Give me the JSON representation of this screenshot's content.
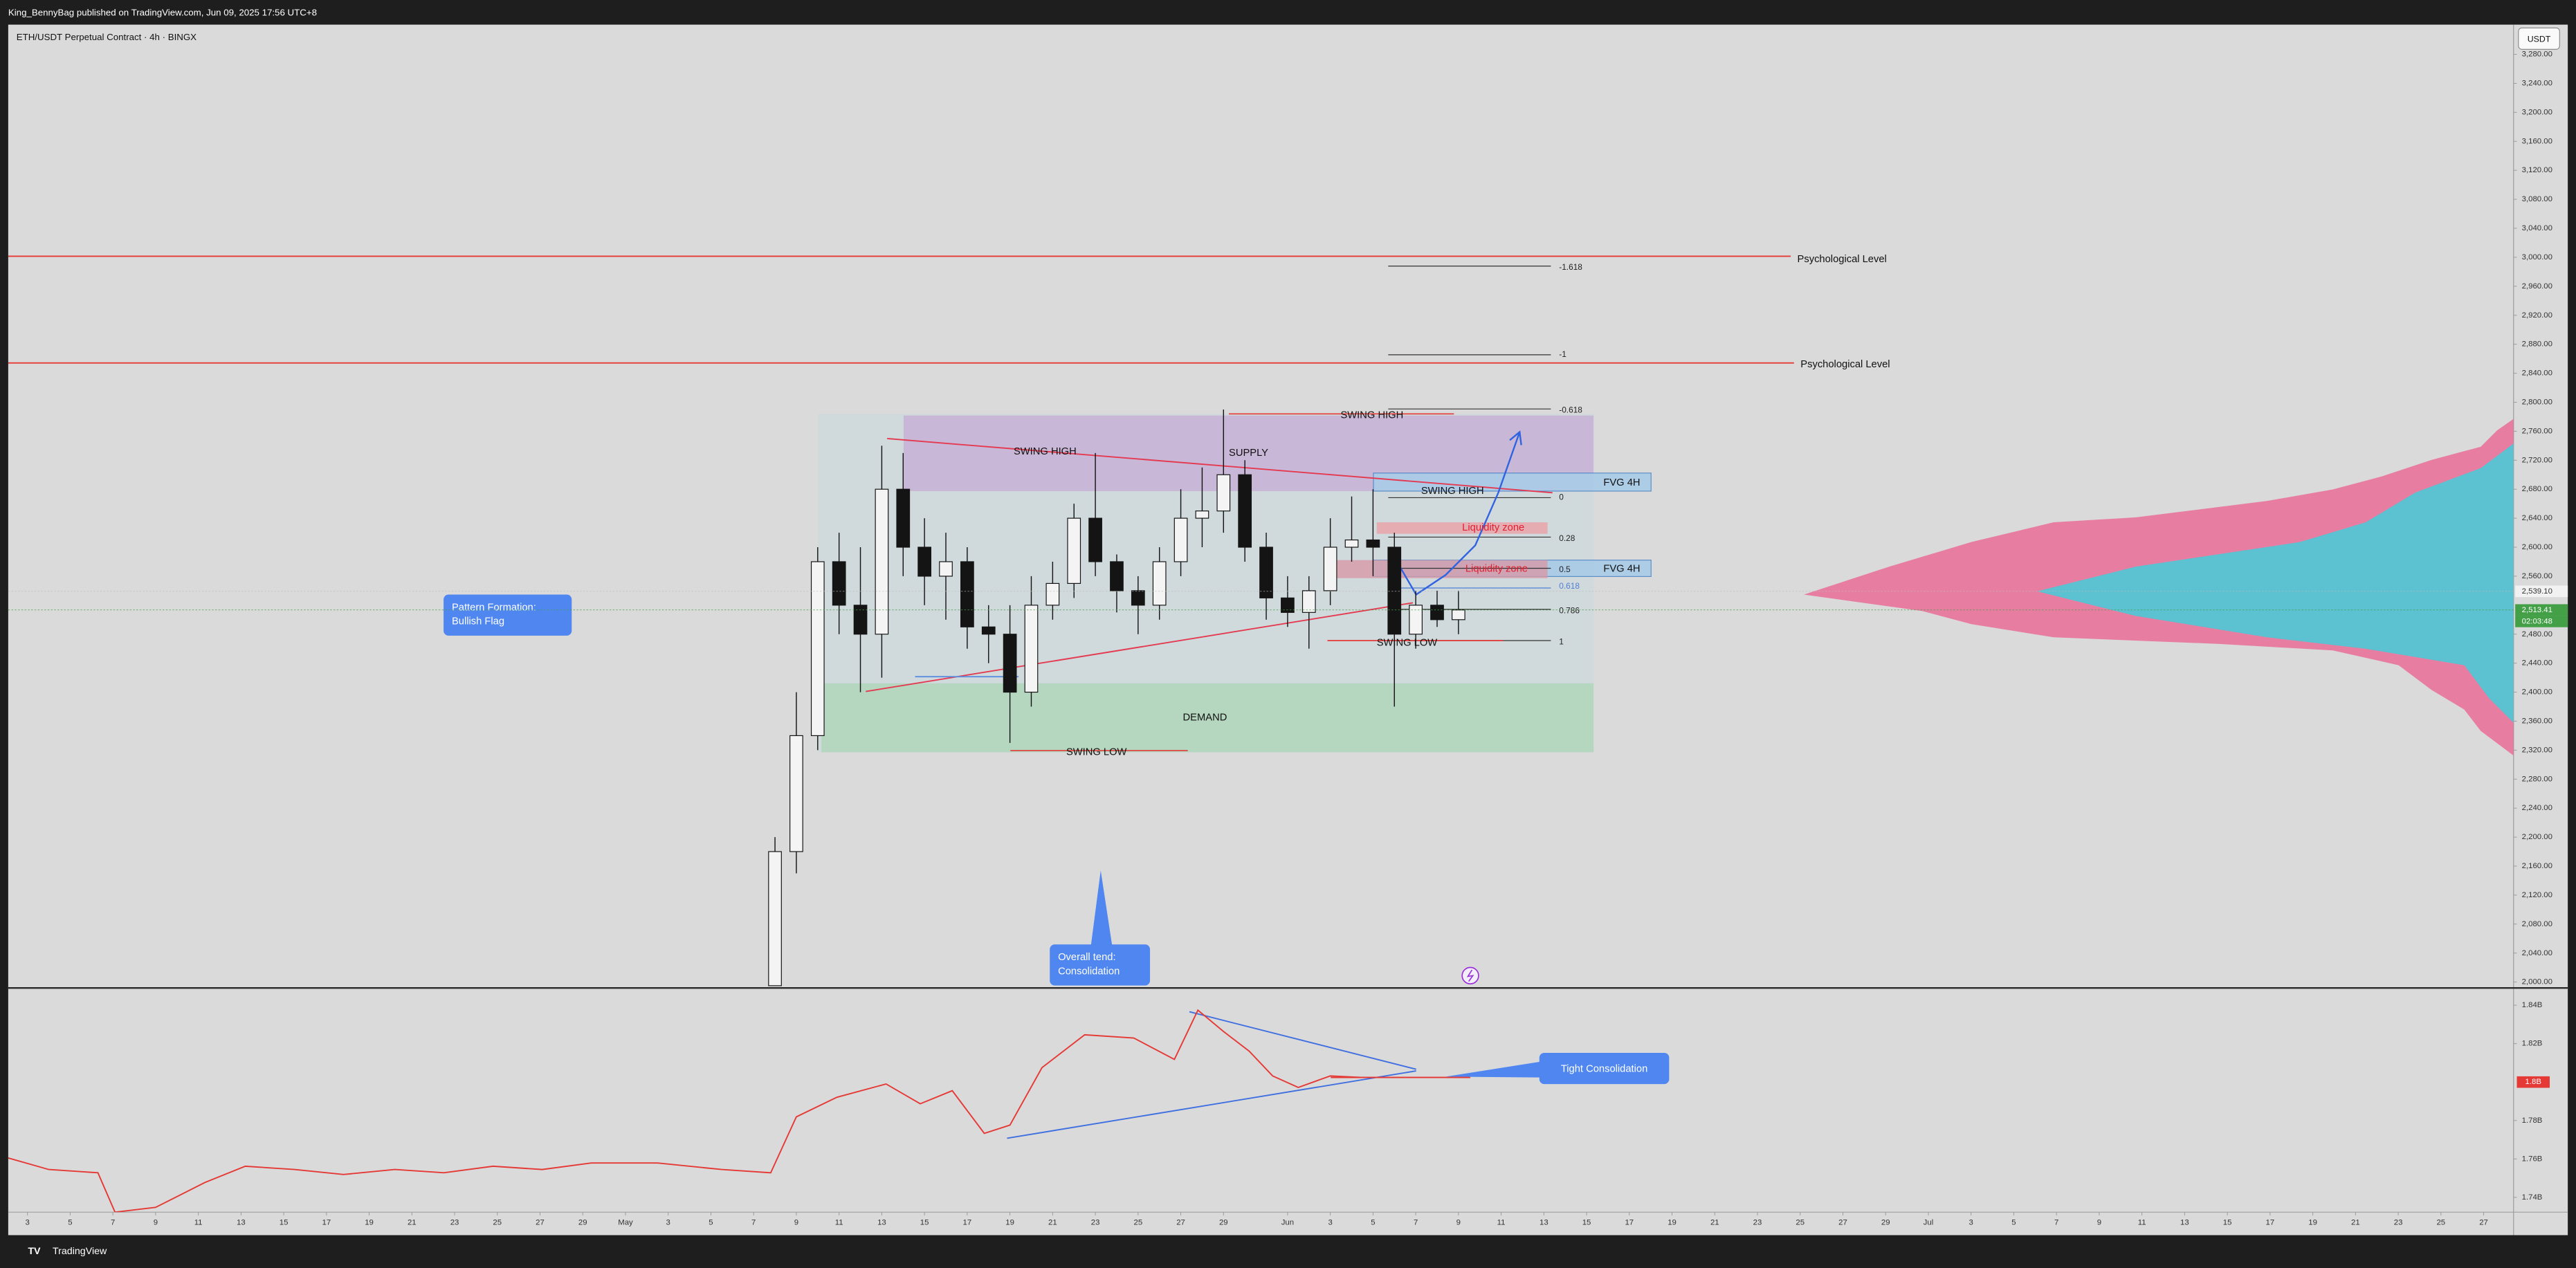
{
  "header": {
    "publisher": "King_BennyBag published on TradingView.com, Jun 09, 2025 17:56 UTC+8"
  },
  "footer": {
    "brand": "TradingView"
  },
  "chart_data": [
    {
      "type": "candlestick",
      "title": "ETH/USDT Perpetual Contract · 4h · BINGX",
      "currency": "USDT",
      "x": [
        37,
        38,
        39,
        40,
        41,
        42,
        43,
        44,
        45,
        46,
        47,
        48,
        49,
        50,
        51,
        52,
        53,
        54,
        55,
        56,
        57,
        58,
        59,
        60,
        61,
        62,
        63,
        64,
        65,
        66,
        67,
        68,
        69
      ],
      "open": [
        1995,
        2180,
        2340,
        2580,
        2520,
        2480,
        2680,
        2600,
        2560,
        2580,
        2490,
        2480,
        2400,
        2520,
        2550,
        2640,
        2580,
        2540,
        2520,
        2580,
        2640,
        2650,
        2700,
        2600,
        2530,
        2510,
        2540,
        2600,
        2610,
        2600,
        2480,
        2520,
        2500
      ],
      "high": [
        2200,
        2400,
        2600,
        2620,
        2600,
        2740,
        2730,
        2640,
        2620,
        2600,
        2520,
        2520,
        2560,
        2580,
        2660,
        2730,
        2590,
        2560,
        2600,
        2680,
        2710,
        2790,
        2720,
        2620,
        2560,
        2560,
        2640,
        2670,
        2680,
        2620,
        2540,
        2540,
        2540
      ],
      "low": [
        1995,
        2150,
        2320,
        2480,
        2400,
        2420,
        2560,
        2520,
        2500,
        2460,
        2440,
        2330,
        2380,
        2500,
        2530,
        2560,
        2510,
        2480,
        2500,
        2560,
        2600,
        2620,
        2580,
        2500,
        2490,
        2460,
        2520,
        2580,
        2560,
        2380,
        2460,
        2490,
        2480
      ],
      "close": [
        2180,
        2340,
        2580,
        2520,
        2480,
        2680,
        2600,
        2560,
        2580,
        2490,
        2480,
        2400,
        2520,
        2550,
        2640,
        2580,
        2540,
        2520,
        2580,
        2640,
        2650,
        2700,
        2600,
        2530,
        2510,
        2540,
        2600,
        2610,
        2600,
        2480,
        2520,
        2500,
        2513.41
      ],
      "colors": {
        "up": "#f4f4f4",
        "down": "#141414",
        "outline": "#141414"
      },
      "xlim": [
        1.1,
        118.4
      ],
      "xticks": [
        {
          "value": 2,
          "label": "3"
        },
        {
          "value": 4,
          "label": "5"
        },
        {
          "value": 6,
          "label": "7"
        },
        {
          "value": 8,
          "label": "9"
        },
        {
          "value": 10,
          "label": "11"
        },
        {
          "value": 12,
          "label": "13"
        },
        {
          "value": 14,
          "label": "15"
        },
        {
          "value": 16,
          "label": "17"
        },
        {
          "value": 18,
          "label": "19"
        },
        {
          "value": 20,
          "label": "21"
        },
        {
          "value": 22,
          "label": "23"
        },
        {
          "value": 24,
          "label": "25"
        },
        {
          "value": 26,
          "label": "27"
        },
        {
          "value": 28,
          "label": "29"
        },
        {
          "value": 30,
          "label": "May"
        },
        {
          "value": 32,
          "label": "3"
        },
        {
          "value": 34,
          "label": "5"
        },
        {
          "value": 36,
          "label": "7"
        },
        {
          "value": 38,
          "label": "9"
        },
        {
          "value": 40,
          "label": "11"
        },
        {
          "value": 42,
          "label": "13"
        },
        {
          "value": 44,
          "label": "15"
        },
        {
          "value": 46,
          "label": "17"
        },
        {
          "value": 48,
          "label": "19"
        },
        {
          "value": 50,
          "label": "21"
        },
        {
          "value": 52,
          "label": "23"
        },
        {
          "value": 54,
          "label": "25"
        },
        {
          "value": 56,
          "label": "27"
        },
        {
          "value": 58,
          "label": "29"
        },
        {
          "value": 61,
          "label": "Jun"
        },
        {
          "value": 63,
          "label": "3"
        },
        {
          "value": 65,
          "label": "5"
        },
        {
          "value": 67,
          "label": "7"
        },
        {
          "value": 69,
          "label": "9"
        },
        {
          "value": 71,
          "label": "11"
        },
        {
          "value": 73,
          "label": "13"
        },
        {
          "value": 75,
          "label": "15"
        },
        {
          "value": 77,
          "label": "17"
        },
        {
          "value": 79,
          "label": "19"
        },
        {
          "value": 81,
          "label": "21"
        },
        {
          "value": 83,
          "label": "23"
        },
        {
          "value": 85,
          "label": "25"
        },
        {
          "value": 87,
          "label": "27"
        },
        {
          "value": 89,
          "label": "29"
        },
        {
          "value": 91,
          "label": "Jul"
        },
        {
          "value": 93,
          "label": "3"
        },
        {
          "value": 95,
          "label": "5"
        },
        {
          "value": 97,
          "label": "7"
        },
        {
          "value": 99,
          "label": "9"
        },
        {
          "value": 101,
          "label": "11"
        },
        {
          "value": 103,
          "label": "13"
        },
        {
          "value": 105,
          "label": "15"
        },
        {
          "value": 107,
          "label": "17"
        },
        {
          "value": 109,
          "label": "19"
        },
        {
          "value": 111,
          "label": "21"
        },
        {
          "value": 113,
          "label": "23"
        },
        {
          "value": 115,
          "label": "25"
        },
        {
          "value": 117,
          "label": "27"
        }
      ],
      "ylim": [
        1993,
        3321
      ],
      "yticks": [
        {
          "value": 2000,
          "label": "2,000.00"
        },
        {
          "value": 2040,
          "label": "2,040.00"
        },
        {
          "value": 2080,
          "label": "2,080.00"
        },
        {
          "value": 2120,
          "label": "2,120.00"
        },
        {
          "value": 2160,
          "label": "2,160.00"
        },
        {
          "value": 2200,
          "label": "2,200.00"
        },
        {
          "value": 2240,
          "label": "2,240.00"
        },
        {
          "value": 2280,
          "label": "2,280.00"
        },
        {
          "value": 2320,
          "label": "2,320.00"
        },
        {
          "value": 2360,
          "label": "2,360.00"
        },
        {
          "value": 2400,
          "label": "2,400.00"
        },
        {
          "value": 2440,
          "label": "2,440.00"
        },
        {
          "value": 2480,
          "label": "2,480.00"
        },
        {
          "value": 2560,
          "label": "2,560.00"
        },
        {
          "value": 2600,
          "label": "2,600.00"
        },
        {
          "value": 2640,
          "label": "2,640.00"
        },
        {
          "value": 2680,
          "label": "2,680.00"
        },
        {
          "value": 2720,
          "label": "2,720.00"
        },
        {
          "value": 2760,
          "label": "2,760.00"
        },
        {
          "value": 2800,
          "label": "2,800.00"
        },
        {
          "value": 2840,
          "label": "2,840.00"
        },
        {
          "value": 2880,
          "label": "2,880.00"
        },
        {
          "value": 2920,
          "label": "2,920.00"
        },
        {
          "value": 2960,
          "label": "2,960.00"
        },
        {
          "value": 3000,
          "label": "3,000.00"
        },
        {
          "value": 3040,
          "label": "3,040.00"
        },
        {
          "value": 3080,
          "label": "3,080.00"
        },
        {
          "value": 3120,
          "label": "3,120.00"
        },
        {
          "value": 3160,
          "label": "3,160.00"
        },
        {
          "value": 3200,
          "label": "3,200.00"
        },
        {
          "value": 3240,
          "label": "3,240.00"
        },
        {
          "value": 3280,
          "label": "3,280.00"
        }
      ],
      "price_labels": [
        {
          "value": 2539.1,
          "label": "2,539.10"
        },
        {
          "value": 2513.41,
          "label": "2,513.41"
        }
      ],
      "countdown": "02:03:48",
      "annotations": {
        "psychological": [
          "Psychological Level",
          "Psychological Level"
        ],
        "fib": [
          "-1.618",
          "-1",
          "-0.618",
          "0",
          "0.28",
          "0.5",
          "0.618",
          "0.786",
          "1"
        ],
        "swing_high": [
          "SWING HIGH",
          "SWING HIGH",
          "SWING HIGH"
        ],
        "supply": "SUPPLY",
        "fvg": [
          "FVG 4H",
          "FVG 4H"
        ],
        "liquidity": [
          "Liquidity zone",
          "Liquidity zone"
        ],
        "swing_low": [
          "SWING LOW",
          "SWING LOW"
        ],
        "demand": "DEMAND",
        "pattern": [
          "Pattern Formation:",
          "Bullish Flag"
        ],
        "trend": [
          "Overall tend:",
          "Consolidation"
        ]
      }
    },
    {
      "type": "line",
      "x": [
        1.1,
        3.0,
        5.3,
        6.1,
        8.0,
        10.3,
        12.2,
        14.5,
        16.8,
        19.2,
        21.5,
        23.8,
        26.1,
        28.4,
        31.5,
        34.5,
        36.8,
        38.0,
        39.9,
        42.2,
        43.8,
        45.3,
        46.8,
        48.0,
        49.5,
        51.5,
        53.8,
        55.7,
        56.8,
        58.0,
        59.2,
        60.3,
        61.5,
        63.0,
        64.5,
        66.8,
        69.5
      ],
      "values": [
        1.7605,
        1.7545,
        1.7528,
        1.7323,
        1.7348,
        1.7477,
        1.7562,
        1.7545,
        1.7519,
        1.7545,
        1.7528,
        1.7562,
        1.7545,
        1.7579,
        1.7579,
        1.7545,
        1.7528,
        1.7819,
        1.7921,
        1.799,
        1.7887,
        1.7955,
        1.7733,
        1.7776,
        1.8075,
        1.8246,
        1.8229,
        1.8118,
        1.8374,
        1.8263,
        1.8161,
        1.8032,
        1.7972,
        1.8032,
        1.8024,
        1.8024,
        1.8024
      ],
      "color": "#e53935",
      "ylim": [
        1.7323,
        1.8494
      ],
      "yticks": [
        {
          "value": 1.74,
          "label": "1.74B"
        },
        {
          "value": 1.76,
          "label": "1.76B"
        },
        {
          "value": 1.78,
          "label": "1.78B"
        },
        {
          "value": 1.82,
          "label": "1.82B"
        },
        {
          "value": 1.84,
          "label": "1.84B"
        }
      ],
      "last_label": {
        "value": 1.8,
        "label": "1.8B"
      },
      "annotation": "Tight Consolidation"
    }
  ]
}
